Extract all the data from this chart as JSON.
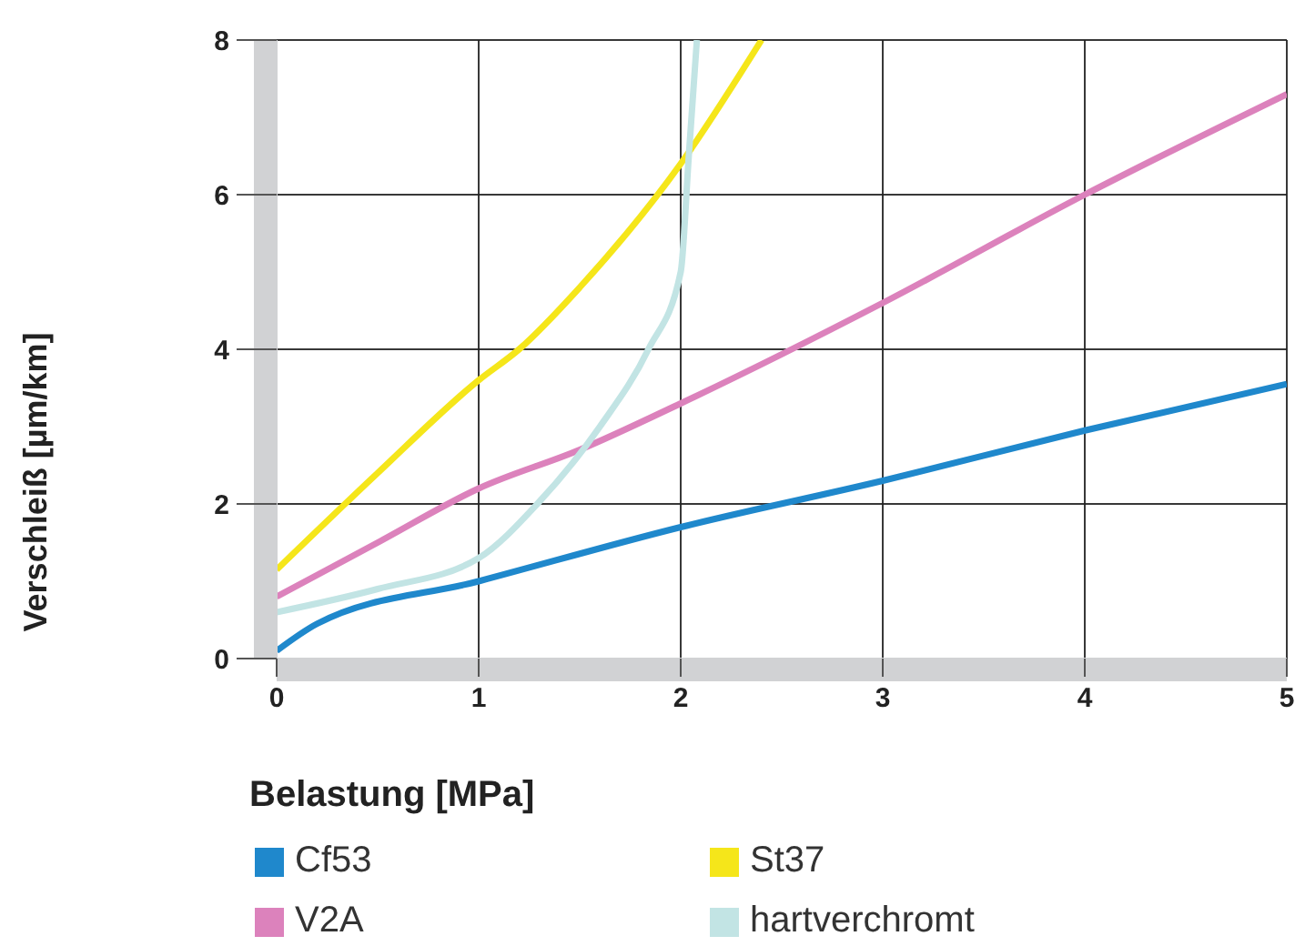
{
  "chart_data": {
    "type": "line",
    "xlabel": "Belastung [MPa]",
    "ylabel": "Verschleiß [µm/km]",
    "xlim": [
      0,
      5
    ],
    "xticks": [
      0,
      1,
      2,
      3,
      4,
      5
    ],
    "ylim": [
      0,
      8
    ],
    "yticks": [
      0,
      2,
      4,
      6,
      8
    ],
    "grid": true,
    "legend": "bottom",
    "marker": "none",
    "line_style": "solid",
    "series": [
      {
        "name": "Cf53",
        "color": "#1f88cc",
        "x": [
          0,
          0.2,
          1,
          2,
          3,
          4,
          5
        ],
        "values": [
          0.1,
          0.45,
          1.0,
          1.7,
          2.3,
          2.95,
          3.55
        ]
      },
      {
        "name": "St37",
        "color": "#f5e61a",
        "x": [
          0,
          0.5,
          1,
          1.2,
          1.5,
          2,
          2.4
        ],
        "values": [
          1.15,
          2.4,
          3.6,
          4.0,
          4.8,
          6.4,
          8.0
        ]
      },
      {
        "name": "V2A",
        "color": "#dc82bc",
        "x": [
          0,
          0.5,
          1,
          1.5,
          2,
          3,
          4,
          5
        ],
        "values": [
          0.8,
          1.5,
          2.2,
          2.7,
          3.3,
          4.6,
          6.0,
          7.3
        ]
      },
      {
        "name": "hartverchromt",
        "color": "#c2e4e4",
        "x": [
          0,
          0.5,
          1,
          1.29,
          1.6,
          1.84,
          2,
          2.04,
          2.08
        ],
        "values": [
          0.6,
          0.9,
          1.3,
          2.0,
          3.0,
          4.0,
          5.0,
          6.5,
          8.0
        ]
      }
    ]
  }
}
